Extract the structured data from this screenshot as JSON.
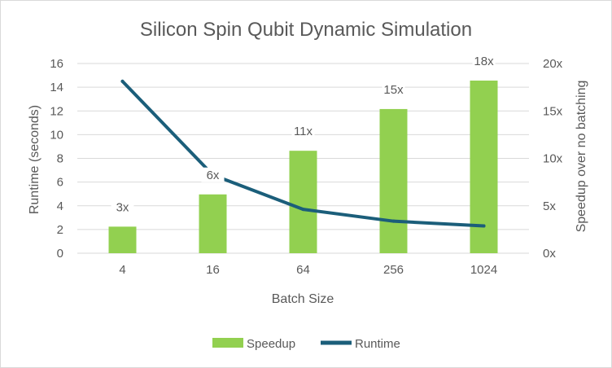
{
  "chart_data": {
    "type": "bar+line",
    "title": "Silicon Spin Qubit Dynamic Simulation",
    "xlabel": "Batch Size",
    "ylabel": "Runtime (seconds)",
    "y2label": "Speedup over no batching",
    "categories": [
      "4",
      "16",
      "64",
      "256",
      "1024"
    ],
    "ylim": [
      0,
      16
    ],
    "yticks": [
      "0",
      "2",
      "4",
      "6",
      "8",
      "10",
      "12",
      "14",
      "16"
    ],
    "y2lim": [
      0,
      20
    ],
    "y2ticks": [
      "0x",
      "5x",
      "10x",
      "15x",
      "20x"
    ],
    "legend_position": "bottom",
    "grid": true,
    "series": [
      {
        "name": "Speedup",
        "kind": "bar",
        "axis": "secondary",
        "color": "#92d050",
        "values": [
          2.8,
          6.2,
          10.8,
          15.2,
          18.2
        ],
        "data_labels": [
          "3x",
          "6x",
          "11x",
          "15x",
          "18x"
        ]
      },
      {
        "name": "Runtime",
        "kind": "line",
        "axis": "primary",
        "color": "#1b5e7a",
        "values": [
          14.5,
          6.6,
          3.7,
          2.7,
          2.3
        ]
      }
    ]
  }
}
